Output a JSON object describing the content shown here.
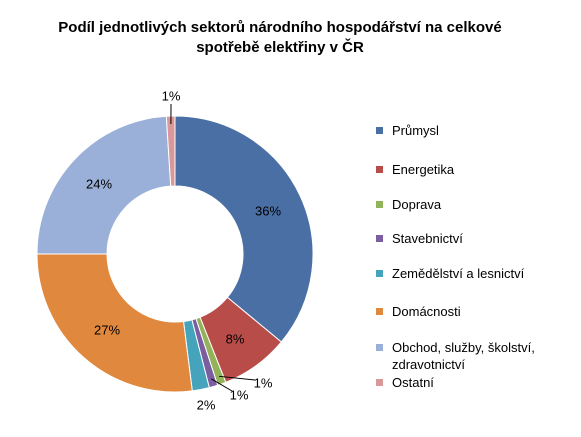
{
  "chart_data": {
    "type": "pie",
    "variant": "doughnut",
    "title_lines": [
      "Podíl jednotlivých sektorů národního hospodářství na celkové",
      "spotřebě elektřiny v ČR"
    ],
    "legend_position": "right",
    "slices": [
      {
        "label": "Průmysl",
        "value": 36,
        "data_label": "36%",
        "color": "#4a6fa5"
      },
      {
        "label": "Energetika",
        "value": 8,
        "data_label": "8%",
        "color": "#b84c48"
      },
      {
        "label": "Doprava",
        "value": 1,
        "data_label": "1%",
        "color": "#93b35a"
      },
      {
        "label": "Stavebnictví",
        "value": 1,
        "data_label": "1%",
        "color": "#7b5ea0"
      },
      {
        "label": "Zemědělství a lesnictví",
        "value": 2,
        "data_label": "2%",
        "color": "#45a3bc"
      },
      {
        "label": "Domácnosti",
        "value": 27,
        "data_label": "27%",
        "color": "#e0883e"
      },
      {
        "label": "Obchod, služby, školství, zdravotnictví",
        "value": 24,
        "data_label": "24%",
        "color": "#9bb0d8"
      },
      {
        "label": "Ostatní",
        "value": 1,
        "data_label": "1%",
        "color": "#d9989a"
      }
    ]
  }
}
